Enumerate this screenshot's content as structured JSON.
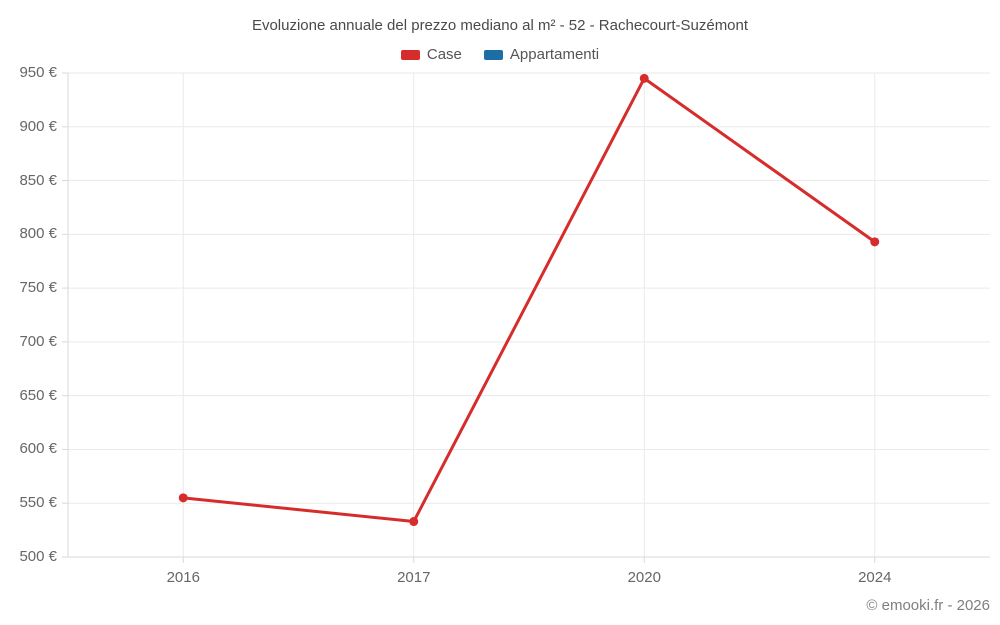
{
  "title": "Evoluzione annuale del prezzo mediano al m² - 52 - Rachecourt-Suzémont",
  "legend": {
    "items": [
      {
        "label": "Case",
        "color": "#d62c2c"
      },
      {
        "label": "Appartamenti",
        "color": "#1c6ea4"
      }
    ]
  },
  "copyright": "© emooki.fr - 2026",
  "colors": {
    "grid": "#eaeaea",
    "axis": "#d9d9d9",
    "axis_text": "#666666",
    "title_text": "#4a4a4a",
    "case_red": "#d62c2c",
    "appartamenti_blue": "#1c6ea4"
  },
  "chart_data": {
    "type": "line",
    "categories": [
      "2016",
      "2017",
      "2020",
      "2024"
    ],
    "series": [
      {
        "name": "Case",
        "color": "#d62c2c",
        "values": [
          555,
          533,
          945,
          793
        ]
      },
      {
        "name": "Appartamenti",
        "color": "#1c6ea4",
        "values": []
      }
    ],
    "title": "Evoluzione annuale del prezzo mediano al m² - 52 - Rachecourt-Suzémont",
    "xlabel": "",
    "ylabel": "",
    "ylim": [
      500,
      950
    ],
    "ytick_step": 50,
    "ytick_labels": [
      "500 €",
      "550 €",
      "600 €",
      "650 €",
      "700 €",
      "750 €",
      "800 €",
      "850 €",
      "900 €",
      "950 €"
    ],
    "grid": true,
    "legend_position": "top"
  }
}
